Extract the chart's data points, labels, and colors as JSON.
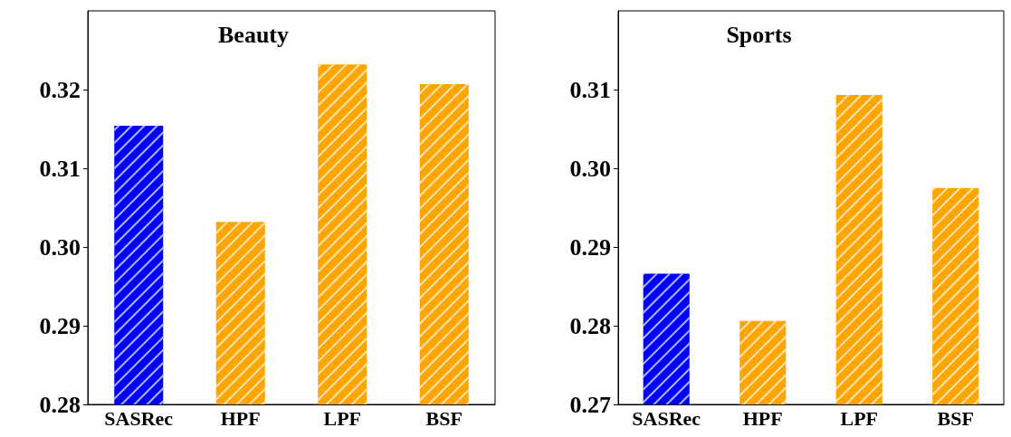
{
  "chart_data": [
    {
      "type": "bar",
      "title": "Beauty",
      "categories": [
        "SASRec",
        "HPF",
        "LPF",
        "BSF"
      ],
      "values": [
        0.3154,
        0.3032,
        0.3232,
        0.3207
      ],
      "colors": [
        "#0000ff",
        "#ffa500",
        "#ffa500",
        "#ffa500"
      ],
      "ylim": [
        0.28,
        0.33
      ],
      "yticks": [
        0.28,
        0.29,
        {
          "value": 0.3,
          "label": "0.30"
        },
        0.31,
        0.32
      ],
      "grid": false
    },
    {
      "type": "bar",
      "title": "Sports",
      "categories": [
        "SASRec",
        "HPF",
        "LPF",
        "BSF"
      ],
      "values": [
        0.2866,
        0.2806,
        0.3093,
        0.2975
      ],
      "colors": [
        "#0000ff",
        "#ffa500",
        "#ffa500",
        "#ffa500"
      ],
      "ylim": [
        0.27,
        0.32
      ],
      "yticks": [
        0.27,
        0.28,
        0.29,
        {
          "value": 0.3,
          "label": "0.30"
        },
        0.31
      ],
      "grid": false
    }
  ]
}
